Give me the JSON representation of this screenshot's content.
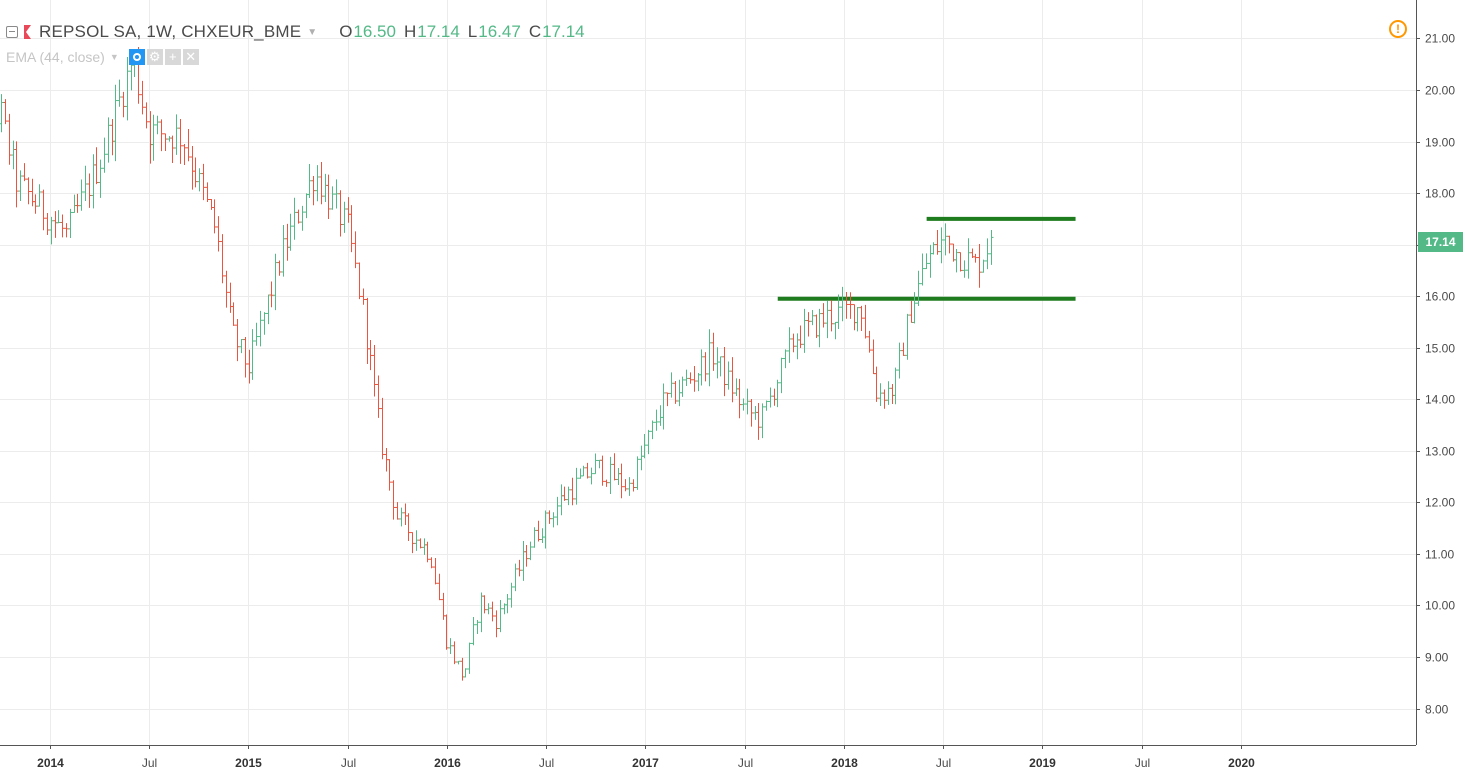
{
  "header": {
    "title": "REPSOL SA, 1W, CHXEUR_BME",
    "o_label": "O",
    "o_value": "16.50",
    "h_label": "H",
    "h_value": "17.14",
    "l_label": "L",
    "l_value": "16.47",
    "c_label": "C",
    "c_value": "17.14",
    "up_color": "#53b987",
    "down_color": "#e8563f"
  },
  "indicator": {
    "label": "EMA (44, close)"
  },
  "alert_icon": "!",
  "last_price_label": "17.14",
  "chart_data": {
    "type": "ohlc",
    "title": "REPSOL SA, 1W, CHXEUR_BME",
    "timeframe": "1W",
    "y_ticks": [
      "8.00",
      "9.00",
      "10.00",
      "11.00",
      "12.00",
      "13.00",
      "14.00",
      "15.00",
      "16.00",
      "17.00",
      "18.00",
      "19.00",
      "20.00",
      "21.00"
    ],
    "ylim": [
      7.1,
      21.9
    ],
    "x_ticks": [
      "2014",
      "Jul",
      "2015",
      "Jul",
      "2016",
      "Jul",
      "2017",
      "Jul",
      "2018",
      "Jul",
      "2019",
      "Jul",
      "2020"
    ],
    "x_range": [
      "2013-08",
      "2020-12"
    ],
    "grid": true,
    "last_price": 17.14,
    "horizontal_lines": [
      {
        "value": 17.5,
        "from": "2018-06",
        "to": "2019-03",
        "color": "#1e7b1e"
      },
      {
        "value": 15.95,
        "from": "2017-09",
        "to": "2019-03",
        "color": "#1e7b1e"
      }
    ],
    "series": [
      {
        "path": [
          [
            "2013-08",
            18.3
          ],
          [
            "2013-10",
            19.6
          ],
          [
            "2013-11",
            18.2
          ],
          [
            "2014-02",
            17.2
          ],
          [
            "2014-04",
            18.6
          ],
          [
            "2014-06",
            20.6
          ],
          [
            "2014-07",
            19.2
          ],
          [
            "2014-09",
            19.1
          ],
          [
            "2014-11",
            17.3
          ],
          [
            "2014-12",
            15.3
          ],
          [
            "2015-01",
            14.6
          ],
          [
            "2015-03",
            16.8
          ],
          [
            "2015-05",
            18.4
          ],
          [
            "2015-07",
            17.3
          ],
          [
            "2015-08",
            15.6
          ],
          [
            "2015-09",
            13.2
          ],
          [
            "2015-10",
            11.7
          ],
          [
            "2015-12",
            11.0
          ],
          [
            "2016-01",
            9.3
          ],
          [
            "2016-02",
            8.6
          ],
          [
            "2016-03",
            10.1
          ],
          [
            "2016-04",
            9.7
          ],
          [
            "2016-06",
            11.2
          ],
          [
            "2016-08",
            12.1
          ],
          [
            "2016-10",
            12.7
          ],
          [
            "2016-12",
            12.3
          ],
          [
            "2017-02",
            13.9
          ],
          [
            "2017-04",
            14.5
          ],
          [
            "2017-05",
            14.9
          ],
          [
            "2017-07",
            13.8
          ],
          [
            "2017-08",
            13.6
          ],
          [
            "2017-10",
            15.2
          ],
          [
            "2017-12",
            15.6
          ],
          [
            "2018-02",
            15.8
          ],
          [
            "2018-03",
            14.1
          ],
          [
            "2018-04",
            14.2
          ],
          [
            "2018-05",
            15.7
          ],
          [
            "2018-06",
            16.7
          ],
          [
            "2018-07",
            17.1
          ],
          [
            "2018-08",
            16.8
          ],
          [
            "2018-09",
            16.6
          ],
          [
            "2018-10",
            17.14
          ]
        ]
      }
    ]
  }
}
